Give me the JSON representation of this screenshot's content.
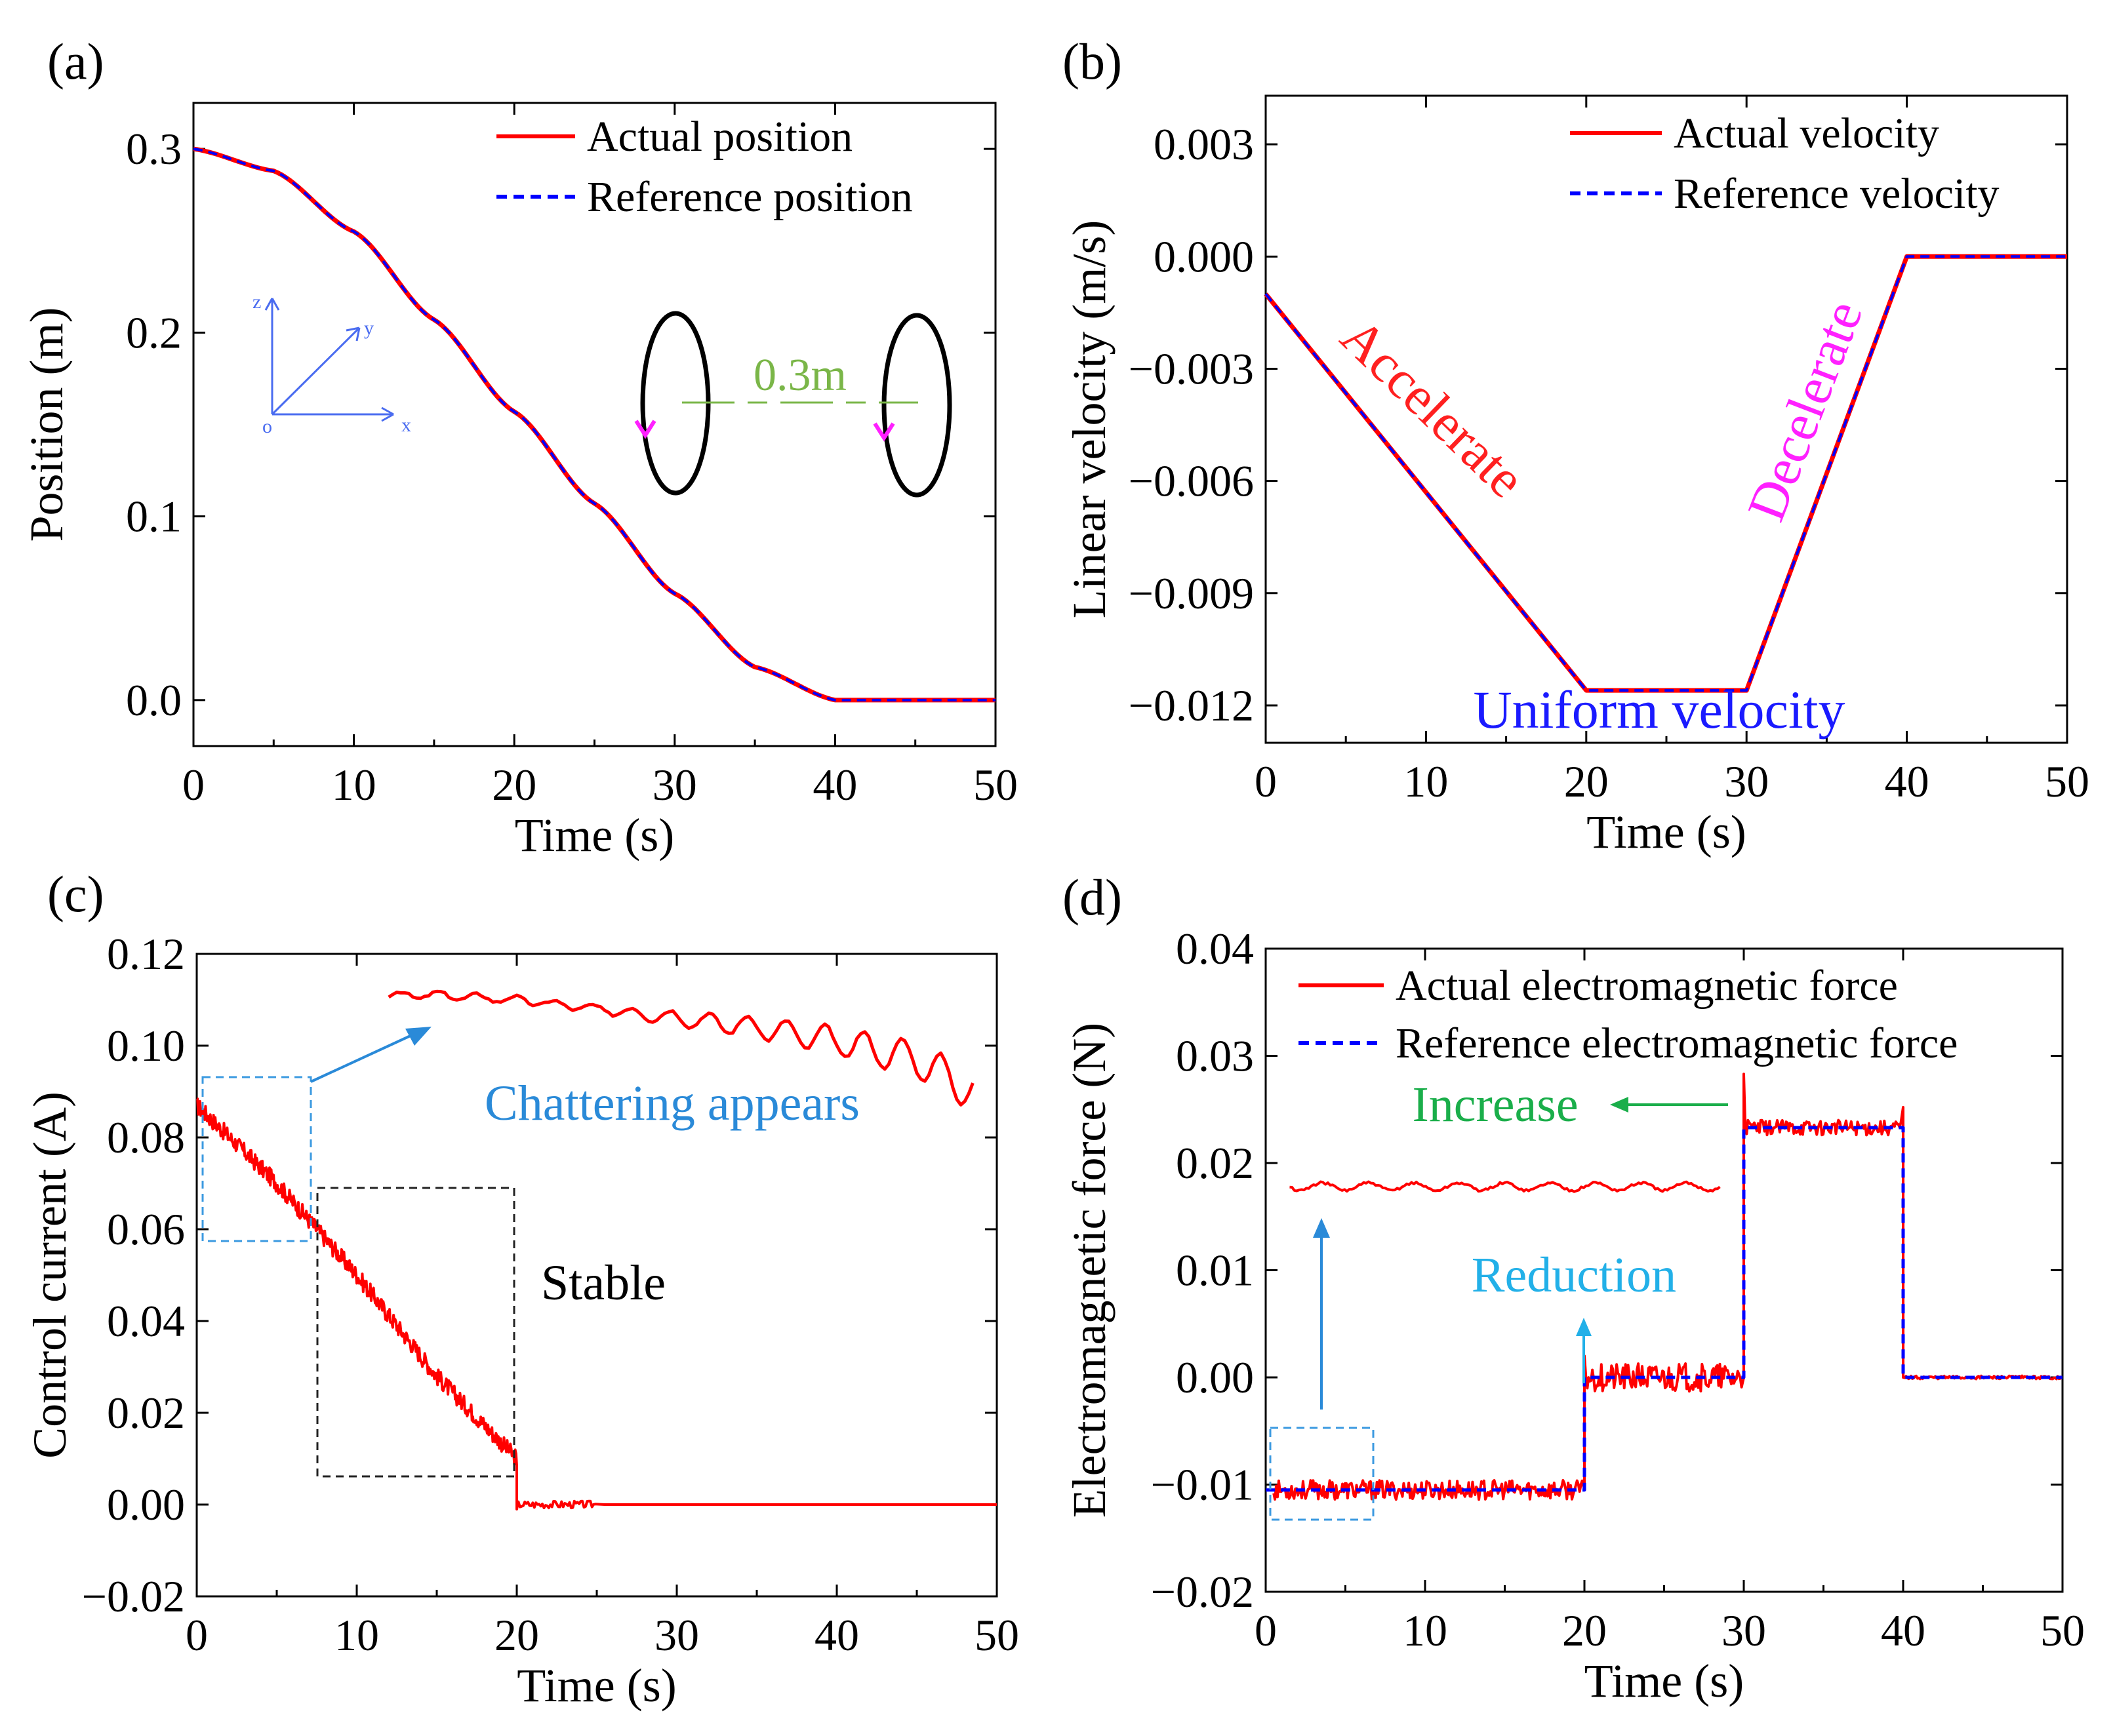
{
  "panels": [
    {
      "id": "a",
      "tag": "(a)",
      "xlabel": "Time (s)",
      "ylabel": "Position (m)",
      "xlim": [
        0,
        50
      ],
      "ylim": [
        -0.025,
        0.325
      ],
      "xticks": [
        0,
        10,
        20,
        30,
        40,
        50
      ],
      "yticks": [
        0.0,
        0.1,
        0.2,
        0.3
      ],
      "ytick_labels": [
        "0.0",
        "0.1",
        "0.2",
        "0.3"
      ],
      "legend": [
        "Actual position",
        "Reference position"
      ],
      "annotations": [
        {
          "text": "0.3m",
          "color": "#7ab648"
        },
        {
          "text": "z",
          "color": "#4a6cf0"
        },
        {
          "text": "y",
          "color": "#4a6cf0"
        },
        {
          "text": "x",
          "color": "#4a6cf0"
        },
        {
          "text": "o",
          "color": "#4a6cf0"
        }
      ]
    },
    {
      "id": "b",
      "tag": "(b)",
      "xlabel": "Time (s)",
      "ylabel": "Linear velocity (m/s)",
      "xlim": [
        0,
        50
      ],
      "ylim": [
        -0.013,
        0.0043
      ],
      "xticks": [
        0,
        10,
        20,
        30,
        40,
        50
      ],
      "yticks": [
        0.003,
        0.0,
        -0.003,
        -0.006,
        -0.009,
        -0.012
      ],
      "ytick_labels": [
        "0.003",
        "0.000",
        "−0.003",
        "−0.006",
        "−0.009",
        "−0.012"
      ],
      "legend": [
        "Actual velocity",
        "Reference velocity"
      ],
      "annotations": [
        {
          "text": "Accelerate",
          "color": "#ff2020"
        },
        {
          "text": "Decelerate",
          "color": "#ff20ff"
        },
        {
          "text": "Uniform velocity",
          "color": "#1a1aff"
        }
      ]
    },
    {
      "id": "c",
      "tag": "(c)",
      "xlabel": "Time (s)",
      "ylabel": "Control current (A)",
      "xlim": [
        0,
        50
      ],
      "ylim": [
        -0.02,
        0.12
      ],
      "xticks": [
        0,
        10,
        20,
        30,
        40,
        50
      ],
      "yticks": [
        -0.02,
        0.0,
        0.02,
        0.04,
        0.06,
        0.08,
        0.1,
        0.12
      ],
      "ytick_labels": [
        "−0.02",
        "0.00",
        "0.02",
        "0.04",
        "0.06",
        "0.08",
        "0.10",
        "0.12"
      ],
      "annotations": [
        {
          "text": "Chattering appears",
          "color": "#2a8ad8"
        },
        {
          "text": "Stable",
          "color": "#000000"
        }
      ]
    },
    {
      "id": "d",
      "tag": "(d)",
      "xlabel": "Time (s)",
      "ylabel": "Electromagnetic force (N)",
      "xlim": [
        0,
        50
      ],
      "ylim": [
        -0.02,
        0.04
      ],
      "xticks": [
        0,
        10,
        20,
        30,
        40,
        50
      ],
      "yticks": [
        -0.02,
        -0.01,
        0.0,
        0.01,
        0.02,
        0.03,
        0.04
      ],
      "ytick_labels": [
        "−0.02",
        "−0.01",
        "0.00",
        "0.01",
        "0.02",
        "0.03",
        "0.04"
      ],
      "legend": [
        "Actual electromagnetic force",
        "Reference electromagnetic force"
      ],
      "annotations": [
        {
          "text": "Increase",
          "color": "#1aae4a"
        },
        {
          "text": "Reduction",
          "color": "#22b0e8"
        }
      ]
    }
  ],
  "colors": {
    "actual": "#ff0000",
    "reference": "#0000ff",
    "box_blue": "#3b9ae0",
    "box_black": "#222222"
  },
  "chart_data": [
    {
      "type": "line",
      "panel": "a",
      "x_label": "Time (s)",
      "y_label": "Position (m)",
      "series": [
        {
          "name": "Actual position",
          "x": [
            0,
            5,
            10,
            15,
            20,
            25,
            30,
            35,
            40,
            45,
            50
          ],
          "y": [
            0.3,
            0.288,
            0.255,
            0.207,
            0.157,
            0.107,
            0.058,
            0.018,
            0.0,
            0.0,
            0.0
          ]
        },
        {
          "name": "Reference position",
          "x": [
            0,
            5,
            10,
            15,
            20,
            25,
            30,
            35,
            40,
            45,
            50
          ],
          "y": [
            0.3,
            0.288,
            0.255,
            0.207,
            0.157,
            0.107,
            0.058,
            0.018,
            0.0,
            0.0,
            0.0
          ]
        }
      ]
    },
    {
      "type": "line",
      "panel": "b",
      "x_label": "Time (s)",
      "y_label": "Linear velocity (m/s)",
      "series": [
        {
          "name": "Actual velocity",
          "x": [
            0,
            20,
            30,
            40,
            50
          ],
          "y": [
            -0.001,
            -0.0116,
            -0.0116,
            0.0,
            0.0
          ]
        },
        {
          "name": "Reference velocity",
          "x": [
            0,
            20,
            30,
            40,
            50
          ],
          "y": [
            -0.001,
            -0.0116,
            -0.0116,
            0.0,
            0.0
          ]
        }
      ]
    },
    {
      "type": "line",
      "panel": "c",
      "x_label": "Time (s)",
      "y_label": "Control current (A)",
      "series": [
        {
          "name": "",
          "x": [
            0,
            5,
            10,
            15,
            20,
            20,
            25,
            30,
            40,
            50
          ],
          "y": [
            0.087,
            0.07,
            0.05,
            0.028,
            0.01,
            0.0,
            0.0,
            0.0,
            0.0,
            0.0
          ]
        }
      ],
      "inset": {
        "x": [
          12,
          15,
          20,
          25,
          30,
          35,
          40,
          45,
          48.5
        ],
        "y": [
          0.111,
          0.111,
          0.11,
          0.108,
          0.106,
          0.104,
          0.101,
          0.097,
          0.09
        ]
      }
    },
    {
      "type": "line",
      "panel": "d",
      "x_label": "Time (s)",
      "y_label": "Electromagnetic force (N)",
      "series": [
        {
          "name": "Actual electromagnetic force",
          "x": [
            0,
            20,
            20,
            30,
            30,
            40,
            40,
            50
          ],
          "y": [
            -0.0105,
            -0.0105,
            0.0,
            0.0,
            0.0233,
            0.0233,
            0.0,
            0.0
          ]
        },
        {
          "name": "Reference electromagnetic force",
          "x": [
            0,
            20,
            20,
            30,
            30,
            40,
            40,
            50
          ],
          "y": [
            -0.0105,
            -0.0105,
            0.0,
            0.0,
            0.0233,
            0.0233,
            0.0,
            0.0
          ]
        }
      ],
      "inset": {
        "x": [
          1.5,
          5,
          10,
          15,
          20,
          25,
          28.5
        ],
        "y": [
          0.0178,
          0.0178,
          0.0178,
          0.0178,
          0.0178,
          0.0178,
          0.0178
        ]
      }
    }
  ]
}
